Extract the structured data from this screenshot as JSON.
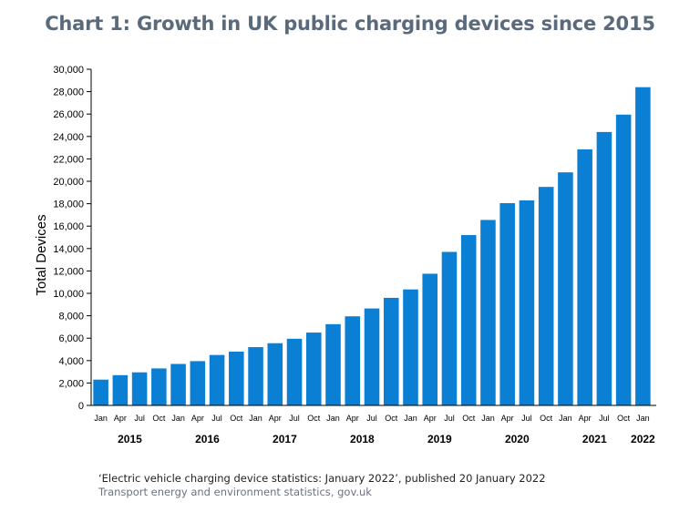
{
  "chart_data": {
    "type": "bar",
    "title": "Chart 1: Growth in UK public charging devices since 2015",
    "ylabel": "Total Devices",
    "xlabel": "",
    "ylim": [
      0,
      30000
    ],
    "yticks": [
      "0",
      "2,000",
      "4,000",
      "6,000",
      "8,000",
      "10,000",
      "12,000",
      "14,000",
      "16,000",
      "18,000",
      "20,000",
      "22,000",
      "24,000",
      "26,000",
      "28,000",
      "30,000"
    ],
    "categories": [
      "Jan",
      "Apr",
      "Jul",
      "Oct",
      "Jan",
      "Apr",
      "Jul",
      "Oct",
      "Jan",
      "Apr",
      "Jul",
      "Oct",
      "Jan",
      "Apr",
      "Jul",
      "Oct",
      "Jan",
      "Apr",
      "Jul",
      "Oct",
      "Jan",
      "Apr",
      "Jul",
      "Oct",
      "Jan",
      "Apr",
      "Jul",
      "Oct",
      "Jan"
    ],
    "years": [
      "2015",
      "2016",
      "2017",
      "2018",
      "2019",
      "2020",
      "2021",
      "2022"
    ],
    "values": [
      2300,
      2700,
      2950,
      3300,
      3700,
      3950,
      4500,
      4800,
      5200,
      5550,
      5950,
      6500,
      7250,
      7950,
      8650,
      9600,
      10350,
      11750,
      13700,
      15200,
      16550,
      18050,
      18300,
      19500,
      20800,
      22850,
      24400,
      25950,
      28400
    ],
    "bar_color": "#0b7fd4",
    "grid": false,
    "legend": "none"
  },
  "source": {
    "line1": "‘Electric vehicle charging device statistics: January 2022’, published 20 January 2022",
    "line2": "Transport energy and environment statistics, gov.uk"
  }
}
